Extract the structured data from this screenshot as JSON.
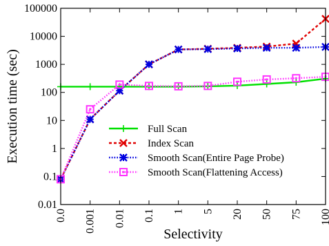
{
  "chart_data": {
    "type": "line",
    "title": "",
    "xlabel": "Selectivity",
    "ylabel": "Execution time (sec)",
    "y_scale": "log",
    "ylim": [
      0.01,
      100000
    ],
    "yticks": [
      "0.01",
      "0.1",
      "1",
      "10",
      "100",
      "1000",
      "10000",
      "100000"
    ],
    "categories": [
      "0.0",
      "0.001",
      "0.01",
      "0.1",
      "1",
      "5",
      "20",
      "50",
      "75",
      "100"
    ],
    "grid": false,
    "legend_position": "center-right",
    "series": [
      {
        "name": "Full Scan",
        "color": "#00e000",
        "line_style": "solid",
        "marker": "plus",
        "values": [
          160,
          160,
          160,
          160,
          160,
          165,
          175,
          200,
          230,
          310
        ]
      },
      {
        "name": "Index Scan",
        "color": "#e00000",
        "line_style": "dashed",
        "marker": "x",
        "values": [
          0.08,
          11,
          115,
          1000,
          3400,
          3600,
          3900,
          4300,
          5500,
          42000
        ]
      },
      {
        "name": "Smooth Scan(Entire Page Probe)",
        "color": "#0000e0",
        "line_style": "dotted",
        "marker": "star",
        "values": [
          0.08,
          11,
          115,
          1000,
          3400,
          3500,
          3700,
          3900,
          3900,
          4200
        ]
      },
      {
        "name": "Smooth Scan(Flattening Access)",
        "color": "#ff33ff",
        "line_style": "dotted",
        "marker": "square",
        "values": [
          0.08,
          25,
          190,
          170,
          165,
          170,
          240,
          290,
          320,
          360
        ]
      }
    ]
  }
}
